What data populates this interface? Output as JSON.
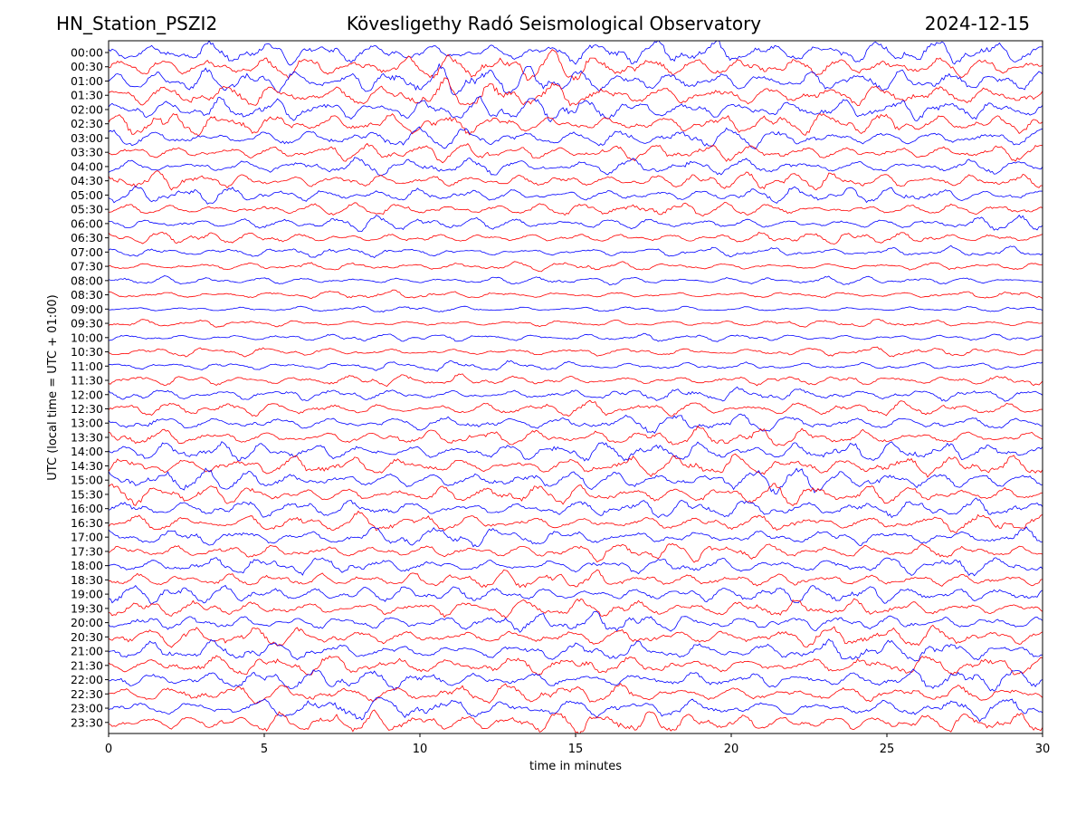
{
  "header": {
    "station": "HN_Station_PSZI2",
    "observatory": "Kövesligethy Radó Seismological Observatory",
    "date": "2024-12-15"
  },
  "chart_data": {
    "type": "line",
    "title": "Kövesligethy Radó Seismological Observatory",
    "xlabel": "time in minutes",
    "ylabel": "UTC (local time = UTC + 01:00)",
    "xlim": [
      0,
      30
    ],
    "x_ticks": [
      0,
      5,
      10,
      15,
      20,
      25,
      30
    ],
    "grid": false,
    "colors": {
      "even_trace": "#0000ff",
      "odd_trace": "#ff0000"
    },
    "rows": [
      "00:00",
      "00:30",
      "01:00",
      "01:30",
      "02:00",
      "02:30",
      "03:00",
      "03:30",
      "04:00",
      "04:30",
      "05:00",
      "05:30",
      "06:00",
      "06:30",
      "07:00",
      "07:30",
      "08:00",
      "08:30",
      "09:00",
      "09:30",
      "10:00",
      "10:30",
      "11:00",
      "11:30",
      "12:00",
      "12:30",
      "13:00",
      "13:30",
      "14:00",
      "14:30",
      "15:00",
      "15:30",
      "16:00",
      "16:30",
      "17:00",
      "17:30",
      "18:00",
      "18:30",
      "19:00",
      "19:30",
      "20:00",
      "20:30",
      "21:00",
      "21:30",
      "22:00",
      "22:30",
      "23:00",
      "23:30"
    ],
    "amplitude": [
      2.4,
      2.6,
      2.7,
      2.6,
      2.4,
      2.2,
      2.0,
      1.8,
      1.7,
      1.6,
      1.5,
      1.4,
      1.3,
      1.1,
      1.0,
      0.9,
      0.8,
      0.75,
      0.6,
      0.7,
      0.8,
      0.9,
      1.0,
      1.1,
      1.3,
      1.5,
      1.7,
      1.8,
      2.0,
      2.1,
      2.1,
      2.0,
      1.9,
      1.8,
      1.8,
      1.7,
      1.7,
      1.7,
      1.8,
      1.8,
      1.8,
      1.9,
      2.0,
      2.0,
      1.9,
      2.0,
      2.1,
      2.2
    ]
  }
}
